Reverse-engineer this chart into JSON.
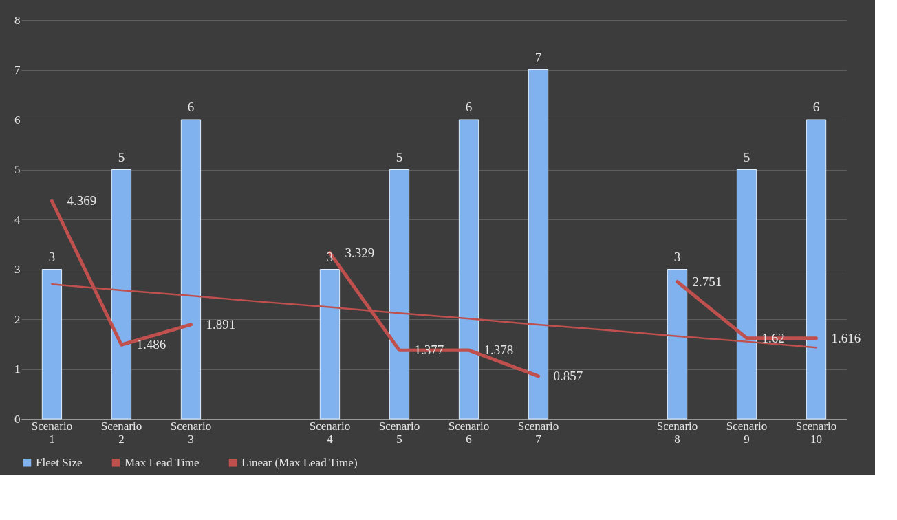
{
  "chart_data": {
    "type": "bar",
    "categories": [
      "Scenario 1",
      "Scenario 2",
      "Scenario 3",
      null,
      "Scenario 4",
      "Scenario 5",
      "Scenario 6",
      "Scenario 7",
      null,
      "Scenario 8",
      "Scenario 9",
      "Scenario 10"
    ],
    "series": [
      {
        "name": "Fleet Size",
        "color": "#7fb2ee",
        "values": [
          3,
          5,
          6,
          null,
          3,
          5,
          6,
          7,
          null,
          3,
          5,
          6
        ],
        "value_labels": [
          "3",
          "5",
          "6",
          null,
          "3",
          "5",
          "6",
          "7",
          null,
          "3",
          "5",
          "6"
        ]
      },
      {
        "name": "Max Lead Time",
        "type": "line",
        "color": "#c0504d",
        "values": [
          4.369,
          1.486,
          1.891,
          null,
          3.329,
          1.377,
          1.378,
          0.857,
          null,
          2.751,
          1.62,
          1.616
        ],
        "value_labels": [
          "4.369",
          "1.486",
          "1.891",
          null,
          "3.329",
          "1.377",
          "1.378",
          "0.857",
          null,
          "2.751",
          "1.62",
          "1.616"
        ]
      },
      {
        "name": "Linear (Max Lead Time)",
        "type": "line",
        "color": "#c0504d",
        "values": [
          2.7,
          2.58,
          2.47,
          2.35,
          2.24,
          2.12,
          2.01,
          1.89,
          1.78,
          1.66,
          1.55,
          1.43
        ]
      }
    ],
    "ylim": [
      0,
      8
    ],
    "yticks": [
      0,
      1,
      2,
      3,
      4,
      5,
      6,
      7,
      8
    ],
    "grid": "y",
    "legend": "bottom"
  }
}
